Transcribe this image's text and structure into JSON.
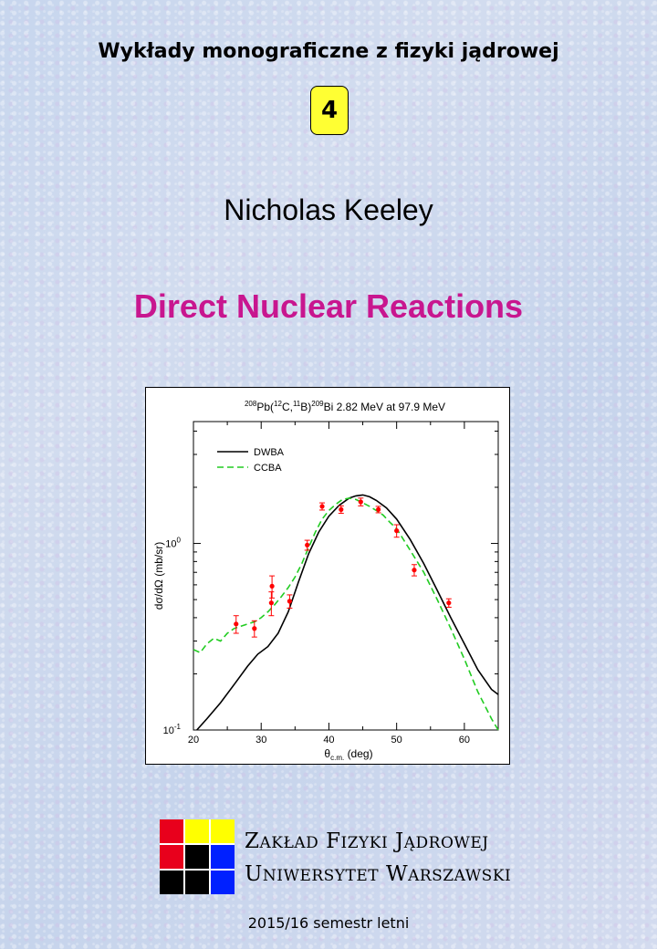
{
  "cover": {
    "series_title": "Wykłady monograficzne z fizyki jądrowej",
    "volume": "4",
    "author": "Nicholas Keeley",
    "title": "Direct Nuclear Reactions",
    "title_color": "#c8168f",
    "badge_color": "#ffff33",
    "semester": "2015/16 semestr letni"
  },
  "institution": {
    "line1_lead": "Z",
    "line1_rest": "AKŁAD",
    "line1_word2_lead": "F",
    "line1_word2_rest": "IZYKI",
    "line1_word3_lead": "J",
    "line1_word3_rest": "ĄDROWEJ",
    "line2_lead": "U",
    "line2_rest": "NIWERSYTET",
    "line2_word2_lead": "W",
    "line2_word2_rest": "ARSZAWSKI",
    "logo_colors": [
      "#e8001c",
      "#ffff00",
      "#ffff00",
      "#e8001c",
      "#000000",
      "#0020ff",
      "#000000",
      "#000000",
      "#0020ff"
    ]
  },
  "chart_data": {
    "type": "line",
    "title_parts": {
      "a_mass": "208",
      "a_sym": "Pb(",
      "b_mass": "12",
      "b_sym": "C,",
      "c_mass": "11",
      "c_sym": "B)",
      "d_mass": "209",
      "d_rest": "Bi 2.82 MeV at 97.9 MeV"
    },
    "xlabel_main": "θ",
    "xlabel_sub": "c.m.",
    "xlabel_unit": "(deg)",
    "ylabel": "dσ/dΩ (mb/sr)",
    "xlim": [
      20,
      65
    ],
    "ylim": [
      0.1,
      4.5
    ],
    "y_scale": "log",
    "x_ticks": [
      "20",
      "30",
      "40",
      "50",
      "60"
    ],
    "y_ticks": [
      {
        "base": "10",
        "exp": "-1",
        "value": 0.1
      },
      {
        "base": "10",
        "exp": "0",
        "value": 1
      }
    ],
    "legend_position": "top-left",
    "series": [
      {
        "name": "DWBA",
        "style": "solid",
        "color": "#000000",
        "x": [
          20.5,
          22,
          24,
          26,
          28,
          29.5,
          31,
          32.5,
          34,
          35.5,
          37,
          38.5,
          40,
          41.5,
          43,
          44,
          45,
          46,
          47,
          48.5,
          50,
          52,
          54,
          56,
          58,
          60,
          62,
          64,
          65
        ],
        "y": [
          0.1,
          0.115,
          0.14,
          0.175,
          0.22,
          0.255,
          0.28,
          0.33,
          0.43,
          0.62,
          0.88,
          1.15,
          1.4,
          1.6,
          1.75,
          1.8,
          1.82,
          1.78,
          1.7,
          1.55,
          1.35,
          1.05,
          0.78,
          0.56,
          0.4,
          0.29,
          0.21,
          0.165,
          0.155
        ]
      },
      {
        "name": "CCBA",
        "style": "dashed",
        "color": "#22cc22",
        "x": [
          20,
          21,
          22,
          23,
          24,
          25,
          26,
          27,
          28,
          29,
          30,
          31,
          32,
          33,
          34,
          35,
          36,
          37,
          38,
          39,
          40,
          41,
          42,
          43,
          44,
          45,
          46,
          47,
          48,
          49,
          50,
          52,
          54,
          56,
          58,
          60,
          62,
          64,
          65
        ],
        "y": [
          0.27,
          0.26,
          0.29,
          0.31,
          0.3,
          0.33,
          0.35,
          0.36,
          0.37,
          0.38,
          0.4,
          0.43,
          0.47,
          0.52,
          0.58,
          0.66,
          0.78,
          0.95,
          1.15,
          1.35,
          1.5,
          1.62,
          1.72,
          1.75,
          1.72,
          1.65,
          1.58,
          1.5,
          1.42,
          1.3,
          1.2,
          0.92,
          0.7,
          0.5,
          0.35,
          0.24,
          0.16,
          0.115,
          0.1
        ]
      },
      {
        "name": "data",
        "style": "points",
        "color": "#ff0000",
        "x": [
          26.3,
          29,
          31.5,
          31.6,
          34.2,
          36.8,
          39,
          41.8,
          44.7,
          47.3,
          50,
          52.6,
          57.7
        ],
        "y": [
          0.37,
          0.35,
          0.48,
          0.59,
          0.49,
          0.98,
          1.58,
          1.52,
          1.67,
          1.52,
          1.17,
          0.72,
          0.48
        ],
        "err": [
          0.04,
          0.035,
          0.07,
          0.08,
          0.04,
          0.06,
          0.07,
          0.07,
          0.08,
          0.06,
          0.09,
          0.05,
          0.025
        ]
      }
    ]
  }
}
